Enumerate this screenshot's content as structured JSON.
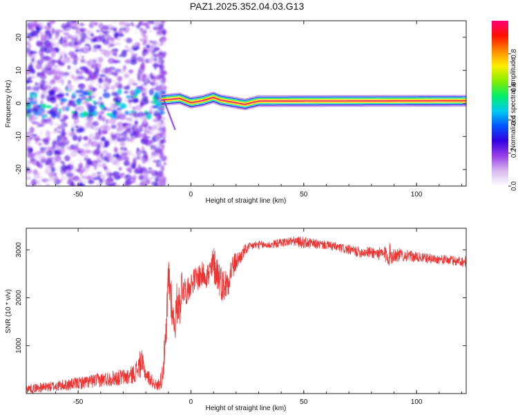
{
  "title": "PAZ1.2025.352.04.03.G13",
  "chart_data": [
    {
      "type": "heatmap",
      "name": "spectrogram",
      "xlabel": "Height of straight line (km)",
      "ylabel": "Frequency (Hz)",
      "xlim": [
        -73,
        122
      ],
      "ylim": [
        -25,
        25
      ],
      "xticks": [
        -50,
        0,
        50,
        100
      ],
      "xtick_labels": [
        "-50",
        "0",
        "50",
        "100"
      ],
      "yticks": [
        -20,
        -10,
        0,
        10,
        20
      ],
      "ytick_labels": [
        "-20",
        "-10",
        "0",
        "10",
        "20"
      ],
      "tone_line": {
        "description": "narrow spectral line near 0-1 Hz",
        "segments": [
          {
            "x": -13,
            "freq": 1.0,
            "amplitude": 0.9
          },
          {
            "x": -5,
            "freq": 1.5,
            "amplitude": 0.85
          },
          {
            "x": 0,
            "freq": 0.2,
            "amplitude": 0.95
          },
          {
            "x": 5,
            "freq": 0.8,
            "amplitude": 0.9
          },
          {
            "x": 10,
            "freq": 1.8,
            "amplitude": 0.85
          },
          {
            "x": 13,
            "freq": 1.0,
            "amplitude": 0.95
          },
          {
            "x": 24,
            "freq": -0.3,
            "amplitude": 0.9
          },
          {
            "x": 30,
            "freq": 0.7,
            "amplitude": 0.95
          },
          {
            "x": 122,
            "freq": 0.8,
            "amplitude": 1.0
          }
        ]
      },
      "noise_region": {
        "x_from": -73,
        "x_to": -12,
        "freq_from": -25,
        "freq_to": 25
      },
      "colorbar": {
        "label": "Normalized spectral amplitude",
        "range": [
          0.0,
          1.0
        ],
        "ticks": [
          0.0,
          0.2,
          0.4,
          0.6,
          0.8
        ],
        "tick_labels": [
          "0.0",
          "0.2",
          "0.4",
          "0.6",
          "0.8"
        ],
        "colors": [
          "#ffffff",
          "#d8b8f0",
          "#9a40e8",
          "#3300e0",
          "#0055ff",
          "#00ccee",
          "#00ee66",
          "#88ee00",
          "#ffee00",
          "#ff8800",
          "#ff1100",
          "#ff0077"
        ]
      }
    },
    {
      "type": "line",
      "name": "snr",
      "xlabel": "Height of straight line (km)",
      "ylabel": "SNR (10 * v/v)",
      "xlim": [
        -73,
        122
      ],
      "ylim": [
        0,
        3450
      ],
      "xticks": [
        -50,
        0,
        50,
        100
      ],
      "xtick_labels": [
        "-50",
        "0",
        "50",
        "100"
      ],
      "yticks": [
        1000,
        2000,
        3000
      ],
      "ytick_labels": [
        "1000",
        "2000",
        "3000"
      ],
      "color": "#ee3333",
      "series": [
        {
          "name": "SNR",
          "x": [
            -73,
            -65,
            -55,
            -45,
            -35,
            -28,
            -25,
            -22,
            -20,
            -18,
            -15,
            -13,
            -11,
            -10,
            -9,
            -8,
            -7,
            -6,
            -5,
            -4,
            -2,
            0,
            2,
            4,
            6,
            8,
            10,
            12,
            14,
            16,
            18,
            20,
            22,
            24,
            26,
            28,
            30,
            35,
            40,
            45,
            50,
            55,
            60,
            65,
            70,
            75,
            80,
            85,
            88,
            90,
            95,
            100,
            105,
            110,
            115,
            122
          ],
          "y": [
            100,
            130,
            180,
            250,
            320,
            350,
            420,
            650,
            400,
            300,
            150,
            300,
            1100,
            2500,
            2150,
            1600,
            1450,
            2000,
            1800,
            2300,
            2100,
            2300,
            2400,
            2450,
            2500,
            2450,
            2700,
            2500,
            2250,
            2300,
            2600,
            2750,
            2850,
            3000,
            3050,
            3100,
            3100,
            3100,
            3150,
            3180,
            3150,
            3120,
            3100,
            3050,
            3000,
            2950,
            2950,
            2900,
            2900,
            2900,
            2880,
            2850,
            2820,
            2800,
            2780,
            2750
          ],
          "spread": [
            90,
            100,
            120,
            140,
            160,
            180,
            200,
            300,
            150,
            150,
            100,
            200,
            500,
            500,
            600,
            300,
            350,
            500,
            450,
            400,
            250,
            250,
            250,
            300,
            250,
            350,
            400,
            400,
            350,
            350,
            300,
            200,
            150,
            120,
            100,
            90,
            90,
            80,
            90,
            100,
            120,
            100,
            90,
            100,
            100,
            110,
            120,
            150,
            250,
            160,
            120,
            110,
            100,
            100,
            100,
            120
          ]
        }
      ]
    }
  ]
}
